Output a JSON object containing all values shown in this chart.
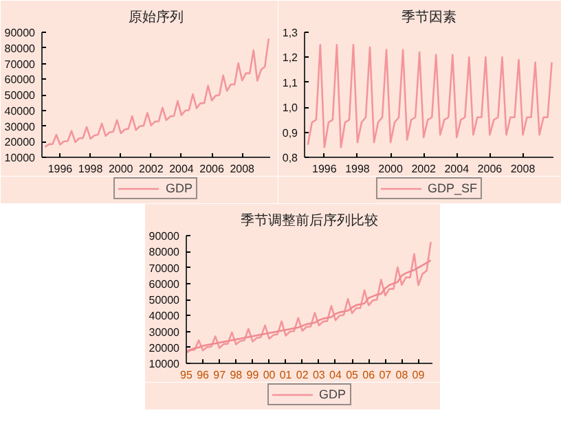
{
  "chart_data": [
    {
      "type": "line",
      "title": "原始序列",
      "x": [
        1995.0,
        1995.25,
        1995.5,
        1995.75,
        1996.0,
        1996.25,
        1996.5,
        1996.75,
        1997.0,
        1997.25,
        1997.5,
        1997.75,
        1998.0,
        1998.25,
        1998.5,
        1998.75,
        1999.0,
        1999.25,
        1999.5,
        1999.75,
        2000.0,
        2000.25,
        2000.5,
        2000.75,
        2001.0,
        2001.25,
        2001.5,
        2001.75,
        2002.0,
        2002.25,
        2002.5,
        2002.75,
        2003.0,
        2003.25,
        2003.5,
        2003.75,
        2004.0,
        2004.25,
        2004.5,
        2004.75,
        2005.0,
        2005.25,
        2005.5,
        2005.75,
        2006.0,
        2006.25,
        2006.5,
        2006.75,
        2007.0,
        2007.25,
        2007.5,
        2007.75,
        2008.0,
        2008.25,
        2008.5,
        2008.75,
        2009.0,
        2009.25,
        2009.5,
        2009.75
      ],
      "series": [
        {
          "name": "GDP",
          "color": "#f4959a",
          "values": [
            16600,
            18300,
            18500,
            24400,
            18100,
            20200,
            20400,
            26900,
            19700,
            22100,
            22300,
            29400,
            21900,
            24000,
            24500,
            31600,
            23700,
            25900,
            26400,
            33800,
            25400,
            27700,
            28300,
            36300,
            27400,
            29900,
            30200,
            38400,
            30400,
            32800,
            33100,
            41700,
            33800,
            36100,
            36500,
            46000,
            37000,
            39900,
            40300,
            50400,
            41400,
            44600,
            44600,
            55800,
            46300,
            49400,
            49900,
            62400,
            52500,
            56600,
            56600,
            70200,
            59200,
            63800,
            63800,
            78500,
            59000,
            66000,
            68000,
            86000
          ]
        }
      ],
      "xlim": [
        1994.8,
        2009.85
      ],
      "ylim": [
        10000,
        90000
      ],
      "xticks": [
        1996,
        1998,
        2000,
        2002,
        2004,
        2006,
        2008
      ],
      "yticks": [
        10000,
        20000,
        30000,
        40000,
        50000,
        60000,
        70000,
        80000,
        90000
      ],
      "grid": false,
      "legend": "bottom"
    },
    {
      "type": "line",
      "title": "季节因素",
      "x": [
        1995.0,
        1995.25,
        1995.5,
        1995.75,
        1996.0,
        1996.25,
        1996.5,
        1996.75,
        1997.0,
        1997.25,
        1997.5,
        1997.75,
        1998.0,
        1998.25,
        1998.5,
        1998.75,
        1999.0,
        1999.25,
        1999.5,
        1999.75,
        2000.0,
        2000.25,
        2000.5,
        2000.75,
        2001.0,
        2001.25,
        2001.5,
        2001.75,
        2002.0,
        2002.25,
        2002.5,
        2002.75,
        2003.0,
        2003.25,
        2003.5,
        2003.75,
        2004.0,
        2004.25,
        2004.5,
        2004.75,
        2005.0,
        2005.25,
        2005.5,
        2005.75,
        2006.0,
        2006.25,
        2006.5,
        2006.75,
        2007.0,
        2007.25,
        2007.5,
        2007.75,
        2008.0,
        2008.25,
        2008.5,
        2008.75,
        2009.0,
        2009.25,
        2009.5,
        2009.75
      ],
      "series": [
        {
          "name": "GDP_SF",
          "color": "#f4959a",
          "values": [
            0.85,
            0.94,
            0.95,
            1.25,
            0.84,
            0.94,
            0.95,
            1.25,
            0.84,
            0.94,
            0.95,
            1.25,
            0.86,
            0.94,
            0.96,
            1.24,
            0.86,
            0.94,
            0.96,
            1.23,
            0.86,
            0.94,
            0.96,
            1.23,
            0.87,
            0.95,
            0.96,
            1.22,
            0.88,
            0.95,
            0.96,
            1.21,
            0.89,
            0.95,
            0.96,
            1.21,
            0.88,
            0.95,
            0.96,
            1.2,
            0.89,
            0.96,
            0.96,
            1.2,
            0.89,
            0.95,
            0.96,
            1.2,
            0.89,
            0.96,
            0.96,
            1.19,
            0.89,
            0.96,
            0.96,
            1.18,
            0.89,
            0.96,
            0.96,
            1.18
          ]
        }
      ],
      "xlim": [
        1994.8,
        2009.85
      ],
      "ylim": [
        0.8,
        1.3
      ],
      "xticks": [
        1996,
        1998,
        2000,
        2002,
        2004,
        2006,
        2008
      ],
      "yticks": [
        {
          "value": 0.8,
          "label": "0,8"
        },
        {
          "value": 0.9,
          "label": "0,9"
        },
        {
          "value": 1.0,
          "label": "1,0"
        },
        {
          "value": 1.1,
          "label": "1,1"
        },
        {
          "value": 1.2,
          "label": "1,2"
        },
        {
          "value": 1.3,
          "label": "1,3"
        }
      ],
      "grid": false,
      "legend": "bottom"
    },
    {
      "type": "line",
      "title": "季节调整前后序列比较",
      "x": [
        1995.0,
        1995.25,
        1995.5,
        1995.75,
        1996.0,
        1996.25,
        1996.5,
        1996.75,
        1997.0,
        1997.25,
        1997.5,
        1997.75,
        1998.0,
        1998.25,
        1998.5,
        1998.75,
        1999.0,
        1999.25,
        1999.5,
        1999.75,
        2000.0,
        2000.25,
        2000.5,
        2000.75,
        2001.0,
        2001.25,
        2001.5,
        2001.75,
        2002.0,
        2002.25,
        2002.5,
        2002.75,
        2003.0,
        2003.25,
        2003.5,
        2003.75,
        2004.0,
        2004.25,
        2004.5,
        2004.75,
        2005.0,
        2005.25,
        2005.5,
        2005.75,
        2006.0,
        2006.25,
        2006.5,
        2006.75,
        2007.0,
        2007.25,
        2007.5,
        2007.75,
        2008.0,
        2008.25,
        2008.5,
        2008.75,
        2009.0,
        2009.25,
        2009.5,
        2009.75
      ],
      "series": [
        {
          "name": "GDP",
          "color": "#f4959a",
          "values": [
            16600,
            18300,
            18500,
            24400,
            18100,
            20200,
            20400,
            26900,
            19700,
            22100,
            22300,
            29400,
            21900,
            24000,
            24500,
            31600,
            23700,
            25900,
            26400,
            33800,
            25400,
            27700,
            28300,
            36300,
            27400,
            29900,
            30200,
            38400,
            30400,
            32800,
            33100,
            41700,
            33800,
            36100,
            36500,
            46000,
            37000,
            39900,
            40300,
            50400,
            41400,
            44600,
            44600,
            55800,
            46300,
            49400,
            49900,
            62400,
            52500,
            56600,
            56600,
            70200,
            59200,
            63800,
            63800,
            78500,
            59000,
            66000,
            68000,
            86000
          ]
        },
        {
          "color": "#f08a90",
          "values": [
            17500,
            18500,
            19500,
            20000,
            21000,
            21500,
            22000,
            22500,
            23000,
            23500,
            24000,
            24500,
            25000,
            25500,
            26000,
            26500,
            27000,
            27500,
            28000,
            28500,
            29000,
            29500,
            30000,
            30500,
            31000,
            31500,
            32000,
            32500,
            33500,
            34500,
            35000,
            35500,
            37000,
            38000,
            38500,
            39000,
            41000,
            42000,
            42500,
            43000,
            45000,
            46500,
            47000,
            47500,
            51000,
            52000,
            53000,
            53500,
            57000,
            59000,
            60000,
            61000,
            65000,
            66500,
            67500,
            68500,
            70000,
            71500,
            73000,
            74500
          ]
        }
      ],
      "xlim": [
        1995.0,
        2009.85
      ],
      "ylim": [
        10000,
        90000
      ],
      "xticks": [
        {
          "value": 1995,
          "label": "95"
        },
        {
          "value": 1996,
          "label": "96"
        },
        {
          "value": 1997,
          "label": "97"
        },
        {
          "value": 1998,
          "label": "98"
        },
        {
          "value": 1999,
          "label": "99"
        },
        {
          "value": 2000,
          "label": "00"
        },
        {
          "value": 2001,
          "label": "01"
        },
        {
          "value": 2002,
          "label": "02"
        },
        {
          "value": 2003,
          "label": "03"
        },
        {
          "value": 2004,
          "label": "04"
        },
        {
          "value": 2005,
          "label": "05"
        },
        {
          "value": 2006,
          "label": "06"
        },
        {
          "value": 2007,
          "label": "07"
        },
        {
          "value": 2008,
          "label": "08"
        },
        {
          "value": 2009,
          "label": "09"
        }
      ],
      "yticks": [
        10000,
        20000,
        30000,
        40000,
        50000,
        60000,
        70000,
        80000,
        90000
      ],
      "grid": false,
      "legend": "bottom"
    }
  ]
}
